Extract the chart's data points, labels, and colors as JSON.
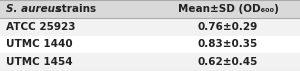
{
  "header_col1": "S. aureus strains",
  "header_col2": "Mean±SD (OD₆₀₀)",
  "rows": [
    [
      "ATCC 25923",
      "0.76±0.29"
    ],
    [
      "UTMC 1440",
      "0.83±0.35"
    ],
    [
      "UTMC 1454",
      "0.62±0.45"
    ]
  ],
  "bg_header": "#d9d9d9",
  "bg_row_odd": "#f2f2f2",
  "bg_row_even": "#ffffff",
  "border_color": "#aaaaaa",
  "text_color": "#222222",
  "header_fontsize": 7.5,
  "row_fontsize": 7.5,
  "fig_width": 3.0,
  "fig_height": 0.71
}
